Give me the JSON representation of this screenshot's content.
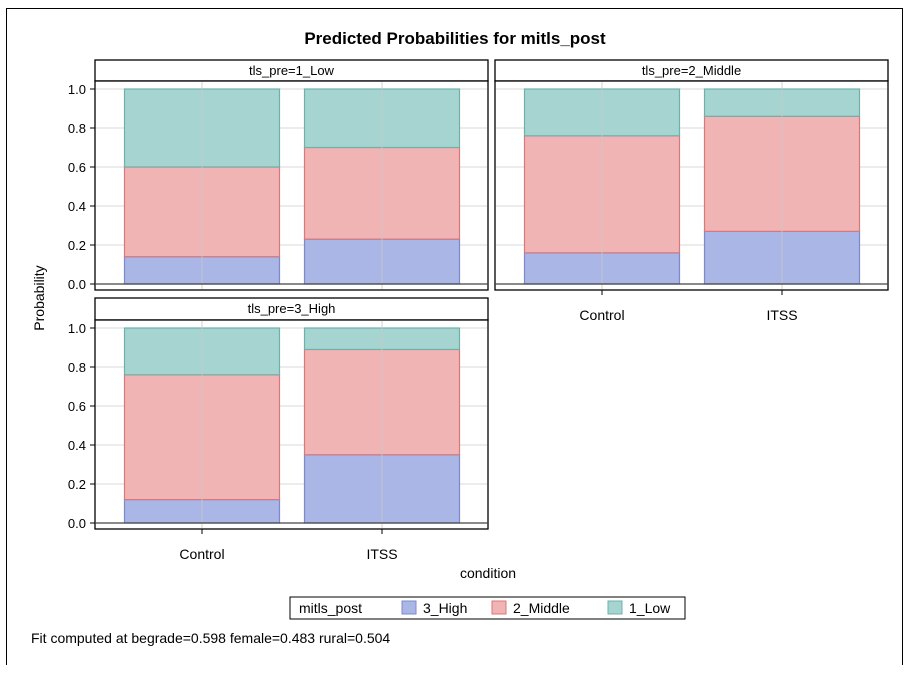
{
  "chart_data": {
    "type": "bar",
    "stacked": true,
    "title": "Predicted Probabilities for mitls_post",
    "xlabel": "condition",
    "ylabel": "Probability",
    "categories": [
      "Control",
      "ITSS"
    ],
    "ylim": [
      0,
      1
    ],
    "yticks": [
      "0.0",
      "0.2",
      "0.4",
      "0.6",
      "0.8",
      "1.0"
    ],
    "legend": {
      "title": "mitls_post",
      "placement": "bottom",
      "entries": [
        {
          "label": "3_High",
          "color": "#aab6e6"
        },
        {
          "label": "2_Middle",
          "color": "#f0b4b4"
        },
        {
          "label": "1_Low",
          "color": "#a6d5d1"
        }
      ]
    },
    "panels": [
      {
        "label": "tls_pre=1_Low",
        "series": [
          {
            "name": "3_High",
            "values": [
              0.14,
              0.23
            ]
          },
          {
            "name": "2_Middle",
            "values": [
              0.46,
              0.47
            ]
          },
          {
            "name": "1_Low",
            "values": [
              0.4,
              0.3
            ]
          }
        ]
      },
      {
        "label": "tls_pre=2_Middle",
        "series": [
          {
            "name": "3_High",
            "values": [
              0.16,
              0.27
            ]
          },
          {
            "name": "2_Middle",
            "values": [
              0.6,
              0.59
            ]
          },
          {
            "name": "1_Low",
            "values": [
              0.24,
              0.14
            ]
          }
        ]
      },
      {
        "label": "tls_pre=3_High",
        "series": [
          {
            "name": "3_High",
            "values": [
              0.12,
              0.35
            ]
          },
          {
            "name": "2_Middle",
            "values": [
              0.64,
              0.54
            ]
          },
          {
            "name": "1_Low",
            "values": [
              0.24,
              0.11
            ]
          }
        ]
      }
    ],
    "grid": true,
    "footnote": "Fit computed at begrade=0.598 female=0.483 rural=0.504"
  }
}
